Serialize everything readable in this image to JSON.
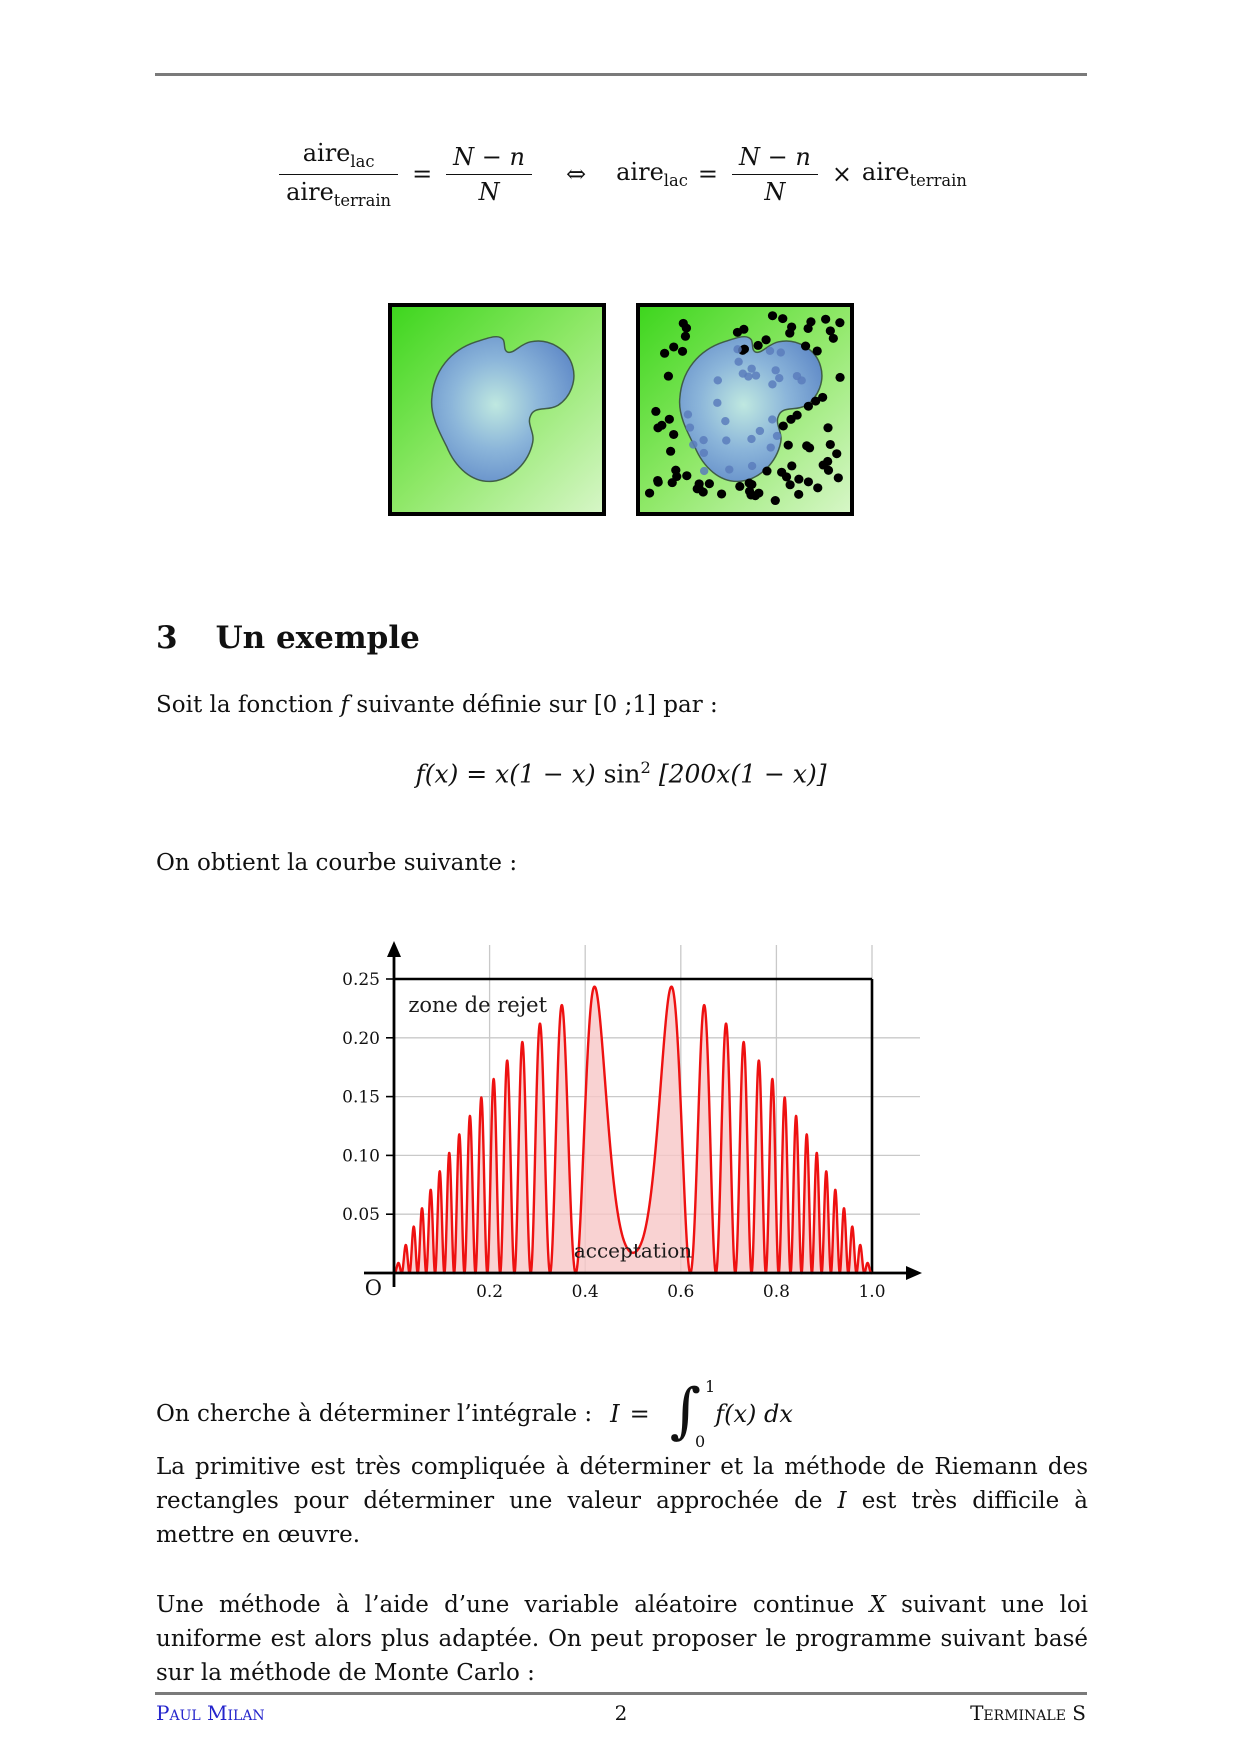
{
  "section": {
    "number": "3",
    "title": "Un exemple"
  },
  "text": {
    "p1_pre": "Soit la fonction",
    "p1_var": "f",
    "p1_post": "suivante définie sur [0 ;1] par :",
    "p2": "On obtient la courbe suivante :",
    "p3_pre": "La primitive est très compliquée à déterminer et la méthode de Riemann des rectangles pour déterminer une valeur approchée de",
    "p3_var": "I",
    "p3_post": "est très difficile à mettre en œuvre.",
    "p4_pre": "Une méthode à l’aide d’une variable aléatoire continue",
    "p4_var": "X",
    "p4_post": "suivant une loi uniforme est alors plus adaptée. On peut proposer le programme suivant basé sur la méthode de Monte Carlo :"
  },
  "equations": {
    "ratio": {
      "aire": "aire",
      "sub_lac": "lac",
      "sub_terrain": "terrain",
      "eq": "=",
      "num": "N − n",
      "den": "N",
      "iff": "⇔",
      "times": "×"
    },
    "fdef": {
      "lhs": "f(x) = x(1 − x)",
      "sin": "sin",
      "exp": "2",
      "bracket": "[200x(1 − x)]"
    },
    "integral": {
      "intro": "On cherche à déterminer l’intégrale :",
      "I": "I",
      "eq": "=",
      "sign": "∫",
      "upper": "1",
      "lower": "0",
      "integrand_f": "f",
      "integrand_rest": "(x) dx"
    }
  },
  "figures": {
    "monte_carlo": {
      "terrain_dots": 78,
      "lake_dots": 30,
      "dot_color": "#000000",
      "lake_dot_color": "#5b7cbc",
      "terrain_color_start": "#3ed61e",
      "terrain_color_end": "#d6f6c6",
      "lake_center_color": "#bfe8e0",
      "lake_edge_color": "#5a80be",
      "seed": 9
    }
  },
  "chart_data": {
    "type": "line",
    "title": "",
    "function_label": "f(x) = x(1−x)·sin²[200x(1−x)]",
    "function_js": "x*(1-x)*Math.pow(Math.sin(200*x*(1-x)),2)",
    "x_range": [
      0,
      1
    ],
    "samples": 2600,
    "xlim": [
      0,
      1.1
    ],
    "ylim": [
      0,
      0.28
    ],
    "grid": true,
    "x_ticks": [
      0.2,
      0.4,
      0.6,
      0.8,
      1.0
    ],
    "x_tick_labels": [
      "0.2",
      "0.4",
      "0.6",
      "0.8",
      "1.0"
    ],
    "y_ticks": [
      0.05,
      0.1,
      0.15,
      0.2,
      0.25
    ],
    "y_tick_labels": [
      "0.05",
      "0.10",
      "0.15",
      "0.20",
      "0.25"
    ],
    "origin_label": "O",
    "frame_top": 0.25,
    "frame_right": 1.0,
    "annotations": [
      {
        "text": "zone de rejet",
        "x": 0.03,
        "y": 0.222,
        "anchor": "start",
        "size": 21
      },
      {
        "text": "acceptation",
        "x": 0.5,
        "y": 0.013,
        "anchor": "middle",
        "size": 20
      }
    ],
    "colors": {
      "curve": "#ee1111",
      "fill": "#f7c7c7",
      "grid": "#c9c9c9",
      "axis": "#000000"
    }
  },
  "page": {
    "footer": {
      "author": "Paul Milan",
      "page_number": "2",
      "level": "Terminale S"
    }
  }
}
